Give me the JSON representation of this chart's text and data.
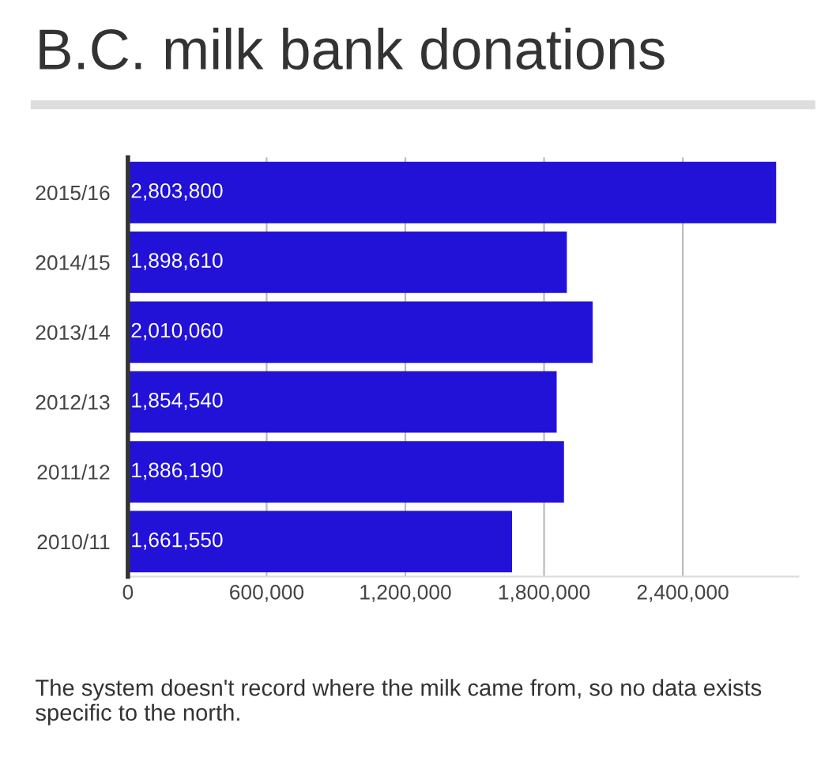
{
  "chart_data": {
    "type": "bar",
    "orientation": "horizontal",
    "title": "B.C. milk bank donations",
    "categories": [
      "2015/16",
      "2014/15",
      "2013/14",
      "2012/13",
      "2011/12",
      "2010/11"
    ],
    "values": [
      2803800,
      1898610,
      2010060,
      1854540,
      1886190,
      1661550
    ],
    "value_labels": [
      "2,803,800",
      "1,898,610",
      "2,010,060",
      "1,854,540",
      "1,886,190",
      "1,661,550"
    ],
    "color": "#2212d8",
    "xlim": [
      0,
      2900000
    ],
    "xticks": [
      0,
      {
        "value": 600000,
        "label": "600,000"
      },
      {
        "value": 1200000,
        "label": "1,200,000"
      },
      {
        "value": 1800000,
        "label": "1,800,000"
      },
      {
        "value": 2400000,
        "label": "2,400,000"
      }
    ],
    "grid": "x",
    "annotations": [
      "The system doesn't record where the milk came from, so no data exists specific to the north."
    ]
  }
}
